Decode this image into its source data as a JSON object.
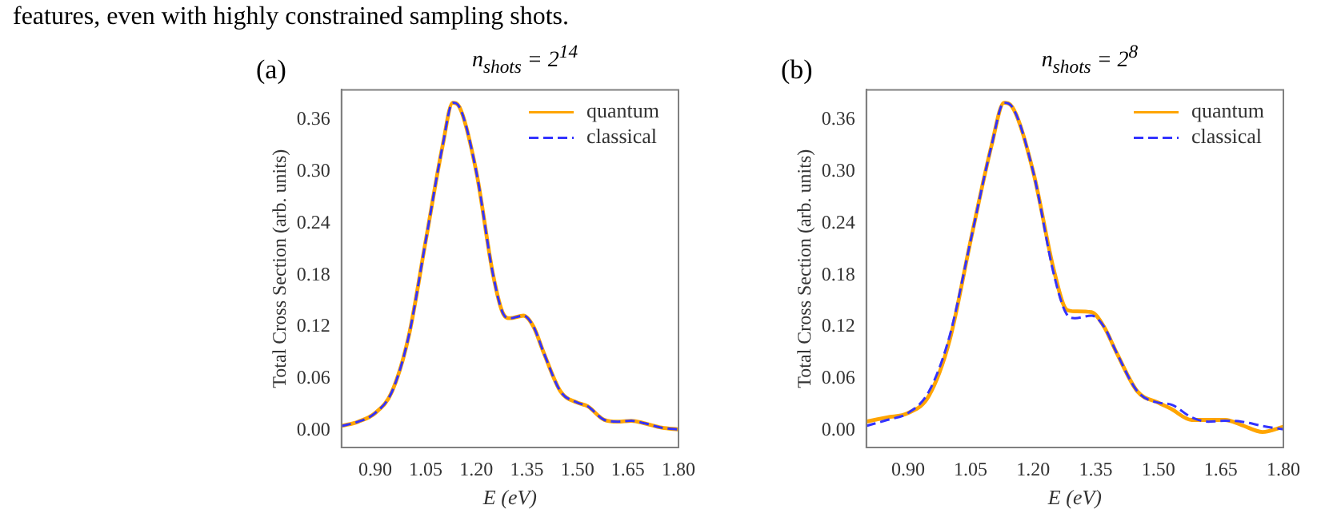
{
  "chart_data": [
    {
      "type": "line",
      "title": "n$_{shots}$ = 2$^{14}$",
      "xlabel": "E (eV)",
      "ylabel": "Total Cross Section (arb. units)",
      "annotations": [
        "(a)",
        "features, even with highly constrained sampling shots."
      ],
      "xlim": [
        0.8,
        1.8
      ],
      "ylim": [
        -0.02,
        0.395
      ],
      "xticks": [
        {
          "value": 0.9,
          "label": "0.90"
        },
        {
          "value": 1.05,
          "label": "1.05"
        },
        {
          "value": 1.2,
          "label": "1.20"
        },
        {
          "value": 1.35,
          "label": "1.35"
        },
        {
          "value": 1.5,
          "label": "1.50"
        },
        {
          "value": 1.65,
          "label": "1.65"
        },
        {
          "value": 1.8,
          "label": "1.80"
        }
      ],
      "yticks": [
        {
          "value": 0,
          "label": "0.00"
        },
        {
          "value": 0.06,
          "label": "0.06"
        },
        {
          "value": 0.12,
          "label": "0.12"
        },
        {
          "value": 0.18,
          "label": "0.18"
        },
        {
          "value": 0.24,
          "label": "0.24"
        },
        {
          "value": 0.3,
          "label": "0.30"
        },
        {
          "value": 0.36,
          "label": "0.36"
        }
      ],
      "grid": false,
      "legend": "top right",
      "x": [
        0.8,
        0.85,
        0.9,
        0.95,
        1.0,
        1.05,
        1.1,
        1.13,
        1.15,
        1.2,
        1.25,
        1.28,
        1.3,
        1.34,
        1.37,
        1.4,
        1.45,
        1.5,
        1.53,
        1.58,
        1.62,
        1.66,
        1.7,
        1.75,
        1.8
      ],
      "series": [
        {
          "name": "quantum",
          "color": "#ffa500",
          "line_style": "solid",
          "values": [
            0.005,
            0.01,
            0.02,
            0.045,
            0.11,
            0.22,
            0.33,
            0.38,
            0.375,
            0.3,
            0.18,
            0.135,
            0.13,
            0.133,
            0.12,
            0.09,
            0.045,
            0.032,
            0.028,
            0.012,
            0.01,
            0.011,
            0.008,
            0.003,
            0.001
          ]
        },
        {
          "name": "classical",
          "color": "#3333ff",
          "line_style": "dashed",
          "values": [
            0.005,
            0.01,
            0.02,
            0.045,
            0.11,
            0.22,
            0.33,
            0.38,
            0.375,
            0.3,
            0.18,
            0.135,
            0.13,
            0.133,
            0.12,
            0.09,
            0.045,
            0.032,
            0.028,
            0.012,
            0.01,
            0.011,
            0.008,
            0.003,
            0.001
          ]
        }
      ]
    },
    {
      "type": "line",
      "title": "n$_{shots}$ = 2$^{8}$",
      "xlabel": "E (eV)",
      "ylabel": "Total Cross Section (arb. units)",
      "annotations": [
        "(b)"
      ],
      "xlim": [
        0.8,
        1.8
      ],
      "ylim": [
        -0.02,
        0.395
      ],
      "xticks": [
        {
          "value": 0.9,
          "label": "0.90"
        },
        {
          "value": 1.05,
          "label": "1.05"
        },
        {
          "value": 1.2,
          "label": "1.20"
        },
        {
          "value": 1.35,
          "label": "1.35"
        },
        {
          "value": 1.5,
          "label": "1.50"
        },
        {
          "value": 1.65,
          "label": "1.65"
        },
        {
          "value": 1.8,
          "label": "1.80"
        }
      ],
      "yticks": [
        {
          "value": 0,
          "label": "0.00"
        },
        {
          "value": 0.06,
          "label": "0.06"
        },
        {
          "value": 0.12,
          "label": "0.12"
        },
        {
          "value": 0.18,
          "label": "0.18"
        },
        {
          "value": 0.24,
          "label": "0.24"
        },
        {
          "value": 0.3,
          "label": "0.30"
        },
        {
          "value": 0.36,
          "label": "0.36"
        }
      ],
      "grid": false,
      "legend": "top right",
      "x": [
        0.8,
        0.85,
        0.9,
        0.95,
        1.0,
        1.05,
        1.1,
        1.13,
        1.15,
        1.2,
        1.25,
        1.28,
        1.3,
        1.34,
        1.37,
        1.4,
        1.45,
        1.5,
        1.53,
        1.58,
        1.62,
        1.66,
        1.7,
        1.75,
        1.8
      ],
      "series": [
        {
          "name": "quantum",
          "color": "#ffa500",
          "line_style": "solid",
          "values": [
            0.01,
            0.015,
            0.02,
            0.04,
            0.105,
            0.22,
            0.33,
            0.38,
            0.375,
            0.3,
            0.185,
            0.14,
            0.138,
            0.137,
            0.12,
            0.09,
            0.045,
            0.032,
            0.025,
            0.012,
            0.012,
            0.012,
            0.006,
            -0.002,
            0.004
          ]
        },
        {
          "name": "classical",
          "color": "#3333ff",
          "line_style": "dashed",
          "values": [
            0.005,
            0.012,
            0.02,
            0.045,
            0.11,
            0.22,
            0.33,
            0.38,
            0.375,
            0.3,
            0.18,
            0.135,
            0.13,
            0.133,
            0.12,
            0.09,
            0.045,
            0.032,
            0.03,
            0.015,
            0.01,
            0.011,
            0.01,
            0.005,
            0.001
          ]
        }
      ]
    }
  ]
}
